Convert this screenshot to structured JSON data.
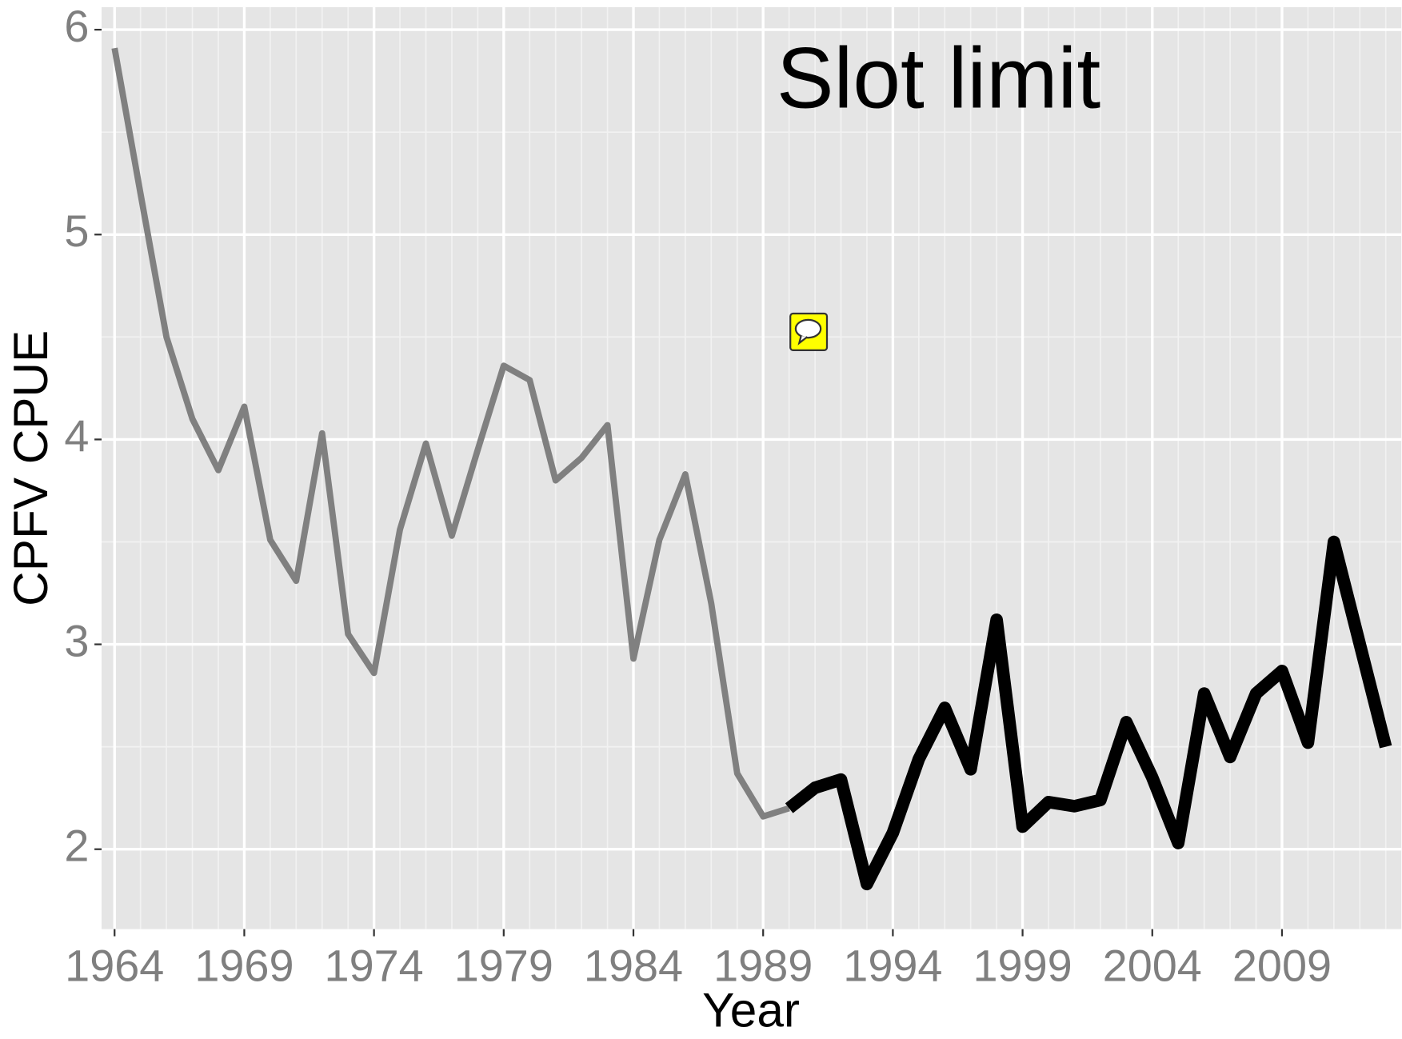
{
  "chart_data": {
    "type": "line",
    "annotation": "Slot limit",
    "xlabel": "Year",
    "ylabel": "CPFV CPUE",
    "x": [
      1964,
      1965,
      1966,
      1967,
      1968,
      1969,
      1970,
      1971,
      1972,
      1973,
      1974,
      1975,
      1976,
      1977,
      1978,
      1979,
      1980,
      1981,
      1982,
      1983,
      1984,
      1985,
      1986,
      1987,
      1988,
      1989,
      1990,
      1991,
      1992,
      1993,
      1994,
      1995,
      1996,
      1997,
      1998,
      1999,
      2000,
      2001,
      2002,
      2003,
      2004,
      2005,
      2006,
      2007,
      2008,
      2009,
      2010,
      2011,
      2012,
      2013
    ],
    "series": [
      {
        "color": "#808080",
        "width": 7,
        "values": [
          5.91,
          5.2,
          4.5,
          4.1,
          3.85,
          4.16,
          3.51,
          3.31,
          4.03,
          3.05,
          2.86,
          3.56,
          3.98,
          3.53,
          3.95,
          4.36,
          4.29,
          3.8,
          3.91,
          4.07,
          2.93,
          3.51,
          3.83,
          3.2,
          2.37,
          2.16,
          2.2,
          null,
          null,
          null,
          null,
          null,
          null,
          null,
          null,
          null,
          null,
          null,
          null,
          null,
          null,
          null,
          null,
          null,
          null,
          null,
          null,
          null,
          null,
          null
        ]
      },
      {
        "color": "#000000",
        "width": 14,
        "values": [
          null,
          null,
          null,
          null,
          null,
          null,
          null,
          null,
          null,
          null,
          null,
          null,
          null,
          null,
          null,
          null,
          null,
          null,
          null,
          null,
          null,
          null,
          null,
          null,
          null,
          null,
          2.2,
          2.3,
          2.34,
          1.83,
          2.08,
          2.44,
          2.69,
          2.39,
          3.12,
          2.11,
          2.23,
          2.21,
          2.24,
          2.62,
          2.35,
          2.03,
          2.76,
          2.45,
          2.76,
          2.87,
          2.52,
          3.5,
          3.0,
          2.5
        ]
      }
    ],
    "xlim": [
      1963.5,
      2013.6
    ],
    "xticks": [
      1964,
      1969,
      1974,
      1979,
      1984,
      1989,
      1994,
      1999,
      2004,
      2009
    ],
    "ylim": [
      1.61,
      6.11
    ],
    "yticks": [
      2,
      3,
      4,
      5,
      6
    ],
    "grid": true
  }
}
